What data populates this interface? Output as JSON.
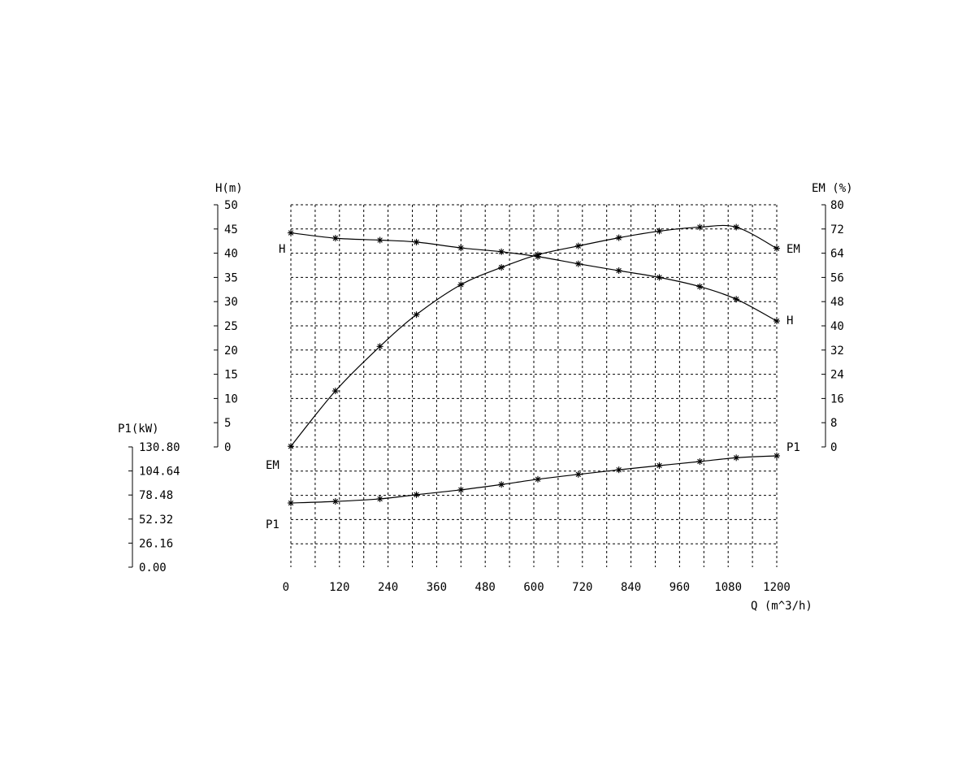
{
  "chart_data": {
    "type": "line",
    "xlabel": "Q (m^3/h)",
    "xlim": [
      0,
      1200
    ],
    "x_ticks": [
      "0",
      "120",
      "240",
      "360",
      "480",
      "600",
      "720",
      "840",
      "960",
      "1080",
      "1200"
    ],
    "axes": {
      "H": {
        "label": "H(m)",
        "range": [
          0,
          50
        ],
        "ticks": [
          "0",
          "5",
          "10",
          "15",
          "20",
          "25",
          "30",
          "35",
          "40",
          "45",
          "50"
        ]
      },
      "EM": {
        "label": "EM (%)",
        "range": [
          0,
          80
        ],
        "ticks": [
          "0",
          "8",
          "16",
          "24",
          "32",
          "40",
          "48",
          "56",
          "64",
          "72",
          "80"
        ]
      },
      "P1": {
        "label": "P1(kW)",
        "range": [
          0,
          130.8
        ],
        "ticks": [
          "0.00",
          "26.16",
          "52.32",
          "78.48",
          "104.64",
          "130.80"
        ]
      }
    },
    "series": [
      {
        "name": "H",
        "axis": "H",
        "x": [
          0,
          110,
          220,
          310,
          420,
          520,
          610,
          710,
          810,
          910,
          1010,
          1100,
          1200
        ],
        "y": [
          44.2,
          43.1,
          42.7,
          42.3,
          41.1,
          40.3,
          39.3,
          37.8,
          36.4,
          35.0,
          33.1,
          30.5,
          26.0
        ]
      },
      {
        "name": "EM",
        "axis": "EM",
        "x": [
          0,
          110,
          220,
          310,
          420,
          520,
          610,
          710,
          810,
          910,
          1010,
          1100,
          1200
        ],
        "y": [
          0.2,
          18.5,
          33.2,
          43.7,
          53.6,
          59.3,
          63.5,
          66.4,
          69.1,
          71.3,
          72.6,
          72.6,
          65.6
        ]
      },
      {
        "name": "P1",
        "axis": "P1",
        "x": [
          0,
          110,
          220,
          310,
          420,
          520,
          610,
          710,
          810,
          910,
          1010,
          1100,
          1200
        ],
        "y": [
          69.8,
          71.5,
          74.3,
          78.8,
          84.1,
          89.9,
          95.6,
          100.9,
          105.9,
          110.5,
          114.9,
          119.0,
          121.1
        ]
      }
    ],
    "grid": true
  }
}
